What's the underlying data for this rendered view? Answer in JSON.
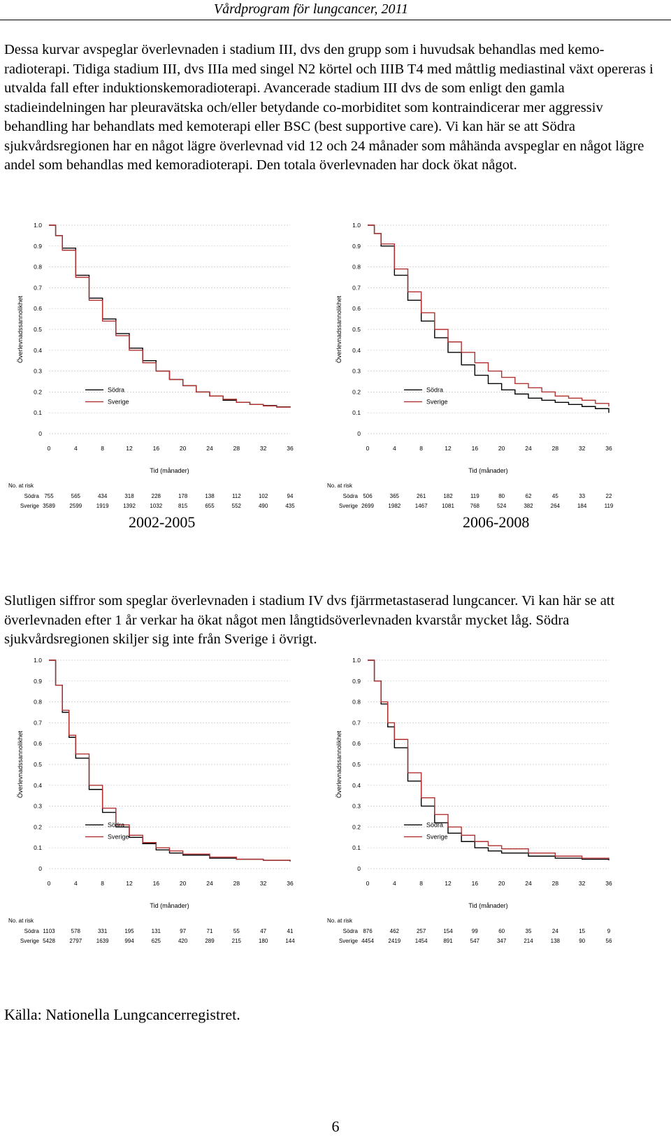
{
  "header": {
    "title": "Vårdprogram för lungcancer, 2011"
  },
  "paragraphs": [
    "Dessa kurvar avspeglar överlevnaden i stadium III, dvs den grupp som i huvudsak behandlas med kemo-radioterapi. Tidiga stadium III, dvs IIIa med singel N2 körtel och IIIB T4 med måttlig mediastinal växt opereras i utvalda fall efter induktionskemoradioterapi. Avancerade stadium III dvs de som enligt den gamla stadieindelningen har pleuravätska och/eller betydande co-morbiditet som kontraindicerar mer aggressiv behandling har behandlats med kemoterapi eller BSC (best supportive care). Vi kan här se att Södra sjukvårdsregionen har en något lägre överlevnad vid 12 och 24 månader som måhända avspeglar en något lägre andel som behandlas med kemoradioterapi. Den totala överlevnaden har dock ökat något.",
    "Slutligen siffror som speglar överlevnaden i stadium IV dvs fjärrmetastaserad lungcancer. Vi kan här se att överlevnaden efter 1 år verkar ha ökat något men långtidsöverlevnaden kvarstår mycket låg. Södra sjukvårdsregionen skiljer sig inte från Sverige i övrigt."
  ],
  "source": "Källa: Nationella Lungcancerregistret.",
  "page_number": "6",
  "colors": {
    "sodra": "#000000",
    "sverige": "#b03030",
    "grid": "#c8c8c8"
  },
  "chart_data": [
    {
      "type": "line",
      "period_label": "2002-2005",
      "xlabel": "Tid (månader)",
      "ylabel": "Överlevnadssannolikhet",
      "xlim": [
        0,
        36
      ],
      "ylim": [
        0,
        1.0
      ],
      "xticks": [
        "0",
        "4",
        "8",
        "12",
        "16",
        "20",
        "24",
        "28",
        "32",
        "36"
      ],
      "yticks": [
        "0",
        "0.1",
        "0.2",
        "0.3",
        "0.4",
        "0.5",
        "0.6",
        "0.7",
        "0.8",
        "0.9",
        "1.0"
      ],
      "series": [
        {
          "name": "Södra",
          "x": [
            0,
            1,
            2,
            4,
            6,
            8,
            10,
            12,
            14,
            16,
            18,
            20,
            22,
            24,
            26,
            28,
            30,
            32,
            34,
            36
          ],
          "y": [
            1.0,
            0.95,
            0.89,
            0.76,
            0.65,
            0.55,
            0.48,
            0.41,
            0.35,
            0.3,
            0.26,
            0.23,
            0.2,
            0.18,
            0.16,
            0.15,
            0.14,
            0.135,
            0.128,
            0.125
          ]
        },
        {
          "name": "Sverige",
          "x": [
            0,
            1,
            2,
            4,
            6,
            8,
            10,
            12,
            14,
            16,
            18,
            20,
            22,
            24,
            26,
            28,
            30,
            32,
            34,
            36
          ],
          "y": [
            1.0,
            0.95,
            0.88,
            0.75,
            0.64,
            0.54,
            0.47,
            0.4,
            0.34,
            0.3,
            0.26,
            0.23,
            0.2,
            0.18,
            0.165,
            0.15,
            0.14,
            0.133,
            0.127,
            0.125
          ]
        }
      ],
      "risk_table": {
        "title": "No. at risk",
        "rows": [
          {
            "name": "Södra",
            "values": [
              "755",
              "565",
              "434",
              "318",
              "228",
              "178",
              "138",
              "112",
              "102",
              "94"
            ]
          },
          {
            "name": "Sverige",
            "values": [
              "3589",
              "2599",
              "1919",
              "1392",
              "1032",
              "815",
              "655",
              "552",
              "490",
              "435"
            ]
          }
        ]
      }
    },
    {
      "type": "line",
      "period_label": "2006-2008",
      "xlabel": "Tid (månader)",
      "ylabel": "Överlevnadssannolikhet",
      "xlim": [
        0,
        36
      ],
      "ylim": [
        0,
        1.0
      ],
      "xticks": [
        "0",
        "4",
        "8",
        "12",
        "16",
        "20",
        "24",
        "28",
        "32",
        "36"
      ],
      "yticks": [
        "0",
        "0.1",
        "0.2",
        "0.3",
        "0.4",
        "0.5",
        "0.6",
        "0.7",
        "0.8",
        "0.9",
        "1.0"
      ],
      "series": [
        {
          "name": "Södra",
          "x": [
            0,
            1,
            2,
            4,
            6,
            8,
            10,
            12,
            14,
            16,
            18,
            20,
            22,
            24,
            26,
            28,
            30,
            32,
            34,
            36
          ],
          "y": [
            1.0,
            0.96,
            0.9,
            0.76,
            0.64,
            0.54,
            0.46,
            0.39,
            0.33,
            0.28,
            0.24,
            0.21,
            0.19,
            0.17,
            0.16,
            0.15,
            0.14,
            0.13,
            0.12,
            0.1
          ]
        },
        {
          "name": "Sverige",
          "x": [
            0,
            1,
            2,
            4,
            6,
            8,
            10,
            12,
            14,
            16,
            18,
            20,
            22,
            24,
            26,
            28,
            30,
            32,
            34,
            36
          ],
          "y": [
            1.0,
            0.96,
            0.91,
            0.79,
            0.68,
            0.58,
            0.5,
            0.44,
            0.39,
            0.34,
            0.3,
            0.27,
            0.24,
            0.22,
            0.2,
            0.18,
            0.17,
            0.16,
            0.145,
            0.13
          ]
        }
      ],
      "risk_table": {
        "title": "No. at risk",
        "rows": [
          {
            "name": "Södra",
            "values": [
              "506",
              "365",
              "261",
              "182",
              "119",
              "80",
              "62",
              "45",
              "33",
              "22"
            ]
          },
          {
            "name": "Sverige",
            "values": [
              "2699",
              "1982",
              "1467",
              "1081",
              "768",
              "524",
              "382",
              "264",
              "184",
              "119"
            ]
          }
        ]
      }
    },
    {
      "type": "line",
      "period_label": "",
      "xlabel": "Tid (månader)",
      "ylabel": "Överlevnadssannolikhet",
      "xlim": [
        0,
        36
      ],
      "ylim": [
        0,
        1.0
      ],
      "xticks": [
        "0",
        "4",
        "8",
        "12",
        "16",
        "20",
        "24",
        "28",
        "32",
        "36"
      ],
      "yticks": [
        "0",
        "0.1",
        "0.2",
        "0.3",
        "0.4",
        "0.5",
        "0.6",
        "0.7",
        "0.8",
        "0.9",
        "1.0"
      ],
      "series": [
        {
          "name": "Södra",
          "x": [
            0,
            1,
            2,
            3,
            4,
            6,
            8,
            10,
            12,
            14,
            16,
            18,
            20,
            24,
            28,
            32,
            36
          ],
          "y": [
            1.0,
            0.88,
            0.75,
            0.63,
            0.53,
            0.38,
            0.27,
            0.2,
            0.15,
            0.12,
            0.09,
            0.075,
            0.065,
            0.05,
            0.045,
            0.04,
            0.035
          ]
        },
        {
          "name": "Sverige",
          "x": [
            0,
            1,
            2,
            3,
            4,
            6,
            8,
            10,
            12,
            14,
            16,
            18,
            20,
            24,
            28,
            32,
            36
          ],
          "y": [
            1.0,
            0.88,
            0.76,
            0.64,
            0.55,
            0.4,
            0.29,
            0.21,
            0.16,
            0.125,
            0.1,
            0.085,
            0.07,
            0.055,
            0.045,
            0.04,
            0.038
          ]
        }
      ],
      "risk_table": {
        "title": "No. at risk",
        "rows": [
          {
            "name": "Södra",
            "values": [
              "1103",
              "578",
              "331",
              "195",
              "131",
              "97",
              "71",
              "55",
              "47",
              "41"
            ]
          },
          {
            "name": "Sverige",
            "values": [
              "5428",
              "2797",
              "1639",
              "994",
              "625",
              "420",
              "289",
              "215",
              "180",
              "144"
            ]
          }
        ]
      }
    },
    {
      "type": "line",
      "period_label": "",
      "xlabel": "Tid (månader)",
      "ylabel": "Överlevnadssannolikhet",
      "xlim": [
        0,
        36
      ],
      "ylim": [
        0,
        1.0
      ],
      "xticks": [
        "0",
        "4",
        "8",
        "12",
        "16",
        "20",
        "24",
        "28",
        "32",
        "36"
      ],
      "yticks": [
        "0",
        "0.1",
        "0.2",
        "0.3",
        "0.4",
        "0.5",
        "0.6",
        "0.7",
        "0.8",
        "0.9",
        "1.0"
      ],
      "series": [
        {
          "name": "Södra",
          "x": [
            0,
            1,
            2,
            3,
            4,
            6,
            8,
            10,
            12,
            14,
            16,
            18,
            20,
            24,
            28,
            32,
            36
          ],
          "y": [
            1.0,
            0.9,
            0.79,
            0.68,
            0.58,
            0.42,
            0.3,
            0.22,
            0.17,
            0.13,
            0.1,
            0.085,
            0.075,
            0.06,
            0.05,
            0.045,
            0.04
          ]
        },
        {
          "name": "Sverige",
          "x": [
            0,
            1,
            2,
            3,
            4,
            6,
            8,
            10,
            12,
            14,
            16,
            18,
            20,
            24,
            28,
            32,
            36
          ],
          "y": [
            1.0,
            0.9,
            0.8,
            0.7,
            0.62,
            0.46,
            0.34,
            0.26,
            0.2,
            0.16,
            0.13,
            0.11,
            0.095,
            0.075,
            0.06,
            0.05,
            0.045
          ]
        }
      ],
      "risk_table": {
        "title": "No. at risk",
        "rows": [
          {
            "name": "Södra",
            "values": [
              "876",
              "462",
              "257",
              "154",
              "99",
              "60",
              "35",
              "24",
              "15",
              "9"
            ]
          },
          {
            "name": "Sverige",
            "values": [
              "4454",
              "2419",
              "1454",
              "891",
              "547",
              "347",
              "214",
              "138",
              "90",
              "56"
            ]
          }
        ]
      }
    }
  ]
}
